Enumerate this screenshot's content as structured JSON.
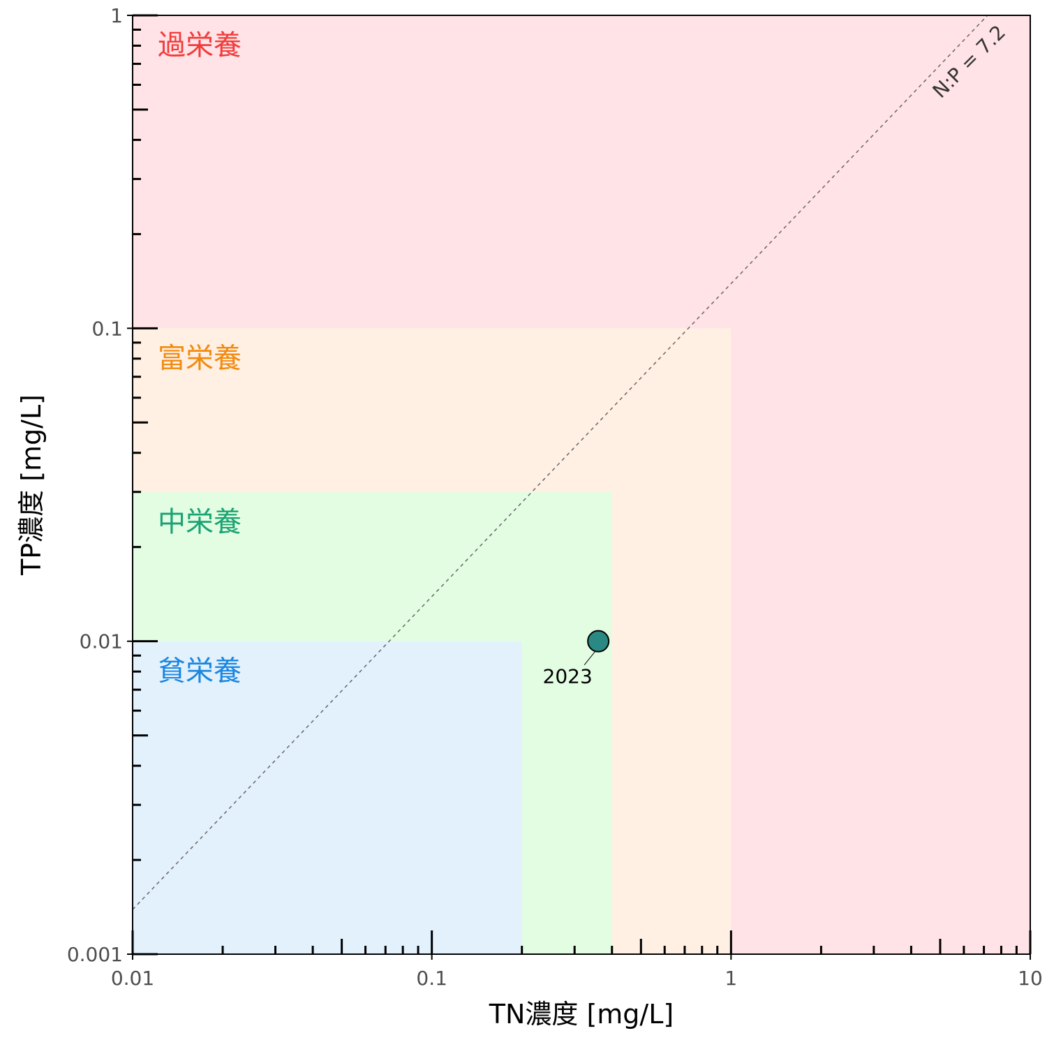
{
  "chart_data": {
    "type": "scatter",
    "xlabel": "TN濃度 [mg/L]",
    "ylabel": "TP濃度 [mg/L]",
    "xscale": "log",
    "yscale": "log",
    "xlim": [
      0.01,
      10
    ],
    "ylim": [
      0.001,
      1
    ],
    "x_ticks": [
      {
        "value": 0.01,
        "label": "0.01"
      },
      {
        "value": 0.1,
        "label": "0.1"
      },
      {
        "value": 1,
        "label": "1"
      },
      {
        "value": 10,
        "label": "10"
      }
    ],
    "y_ticks": [
      {
        "value": 0.001,
        "label": "0.001"
      },
      {
        "value": 0.01,
        "label": "0.01"
      },
      {
        "value": 0.1,
        "label": "0.1"
      },
      {
        "value": 1,
        "label": "1"
      }
    ],
    "grid": false,
    "zones": [
      {
        "label": "過栄養",
        "tn_max": 10,
        "tp_max": 1,
        "fill": "#ffe3e6",
        "text_color": "#f23b3b"
      },
      {
        "label": "富栄養",
        "tn_max": 1,
        "tp_max": 0.1,
        "fill": "#fff0e3",
        "text_color": "#f28a0f"
      },
      {
        "label": "中栄養",
        "tn_max": 0.4,
        "tp_max": 0.03,
        "fill": "#e3fde3",
        "text_color": "#1aa373"
      },
      {
        "label": "貧栄養",
        "tn_max": 0.2,
        "tp_max": 0.01,
        "fill": "#e3f1fd",
        "text_color": "#1a86e0"
      }
    ],
    "reference_line": {
      "label": "N:P = 7.2",
      "ratio": 7.2,
      "color": "#666666"
    },
    "points": [
      {
        "label": "2023",
        "x": 0.36,
        "y": 0.01,
        "color": "#2a8a83"
      }
    ]
  }
}
